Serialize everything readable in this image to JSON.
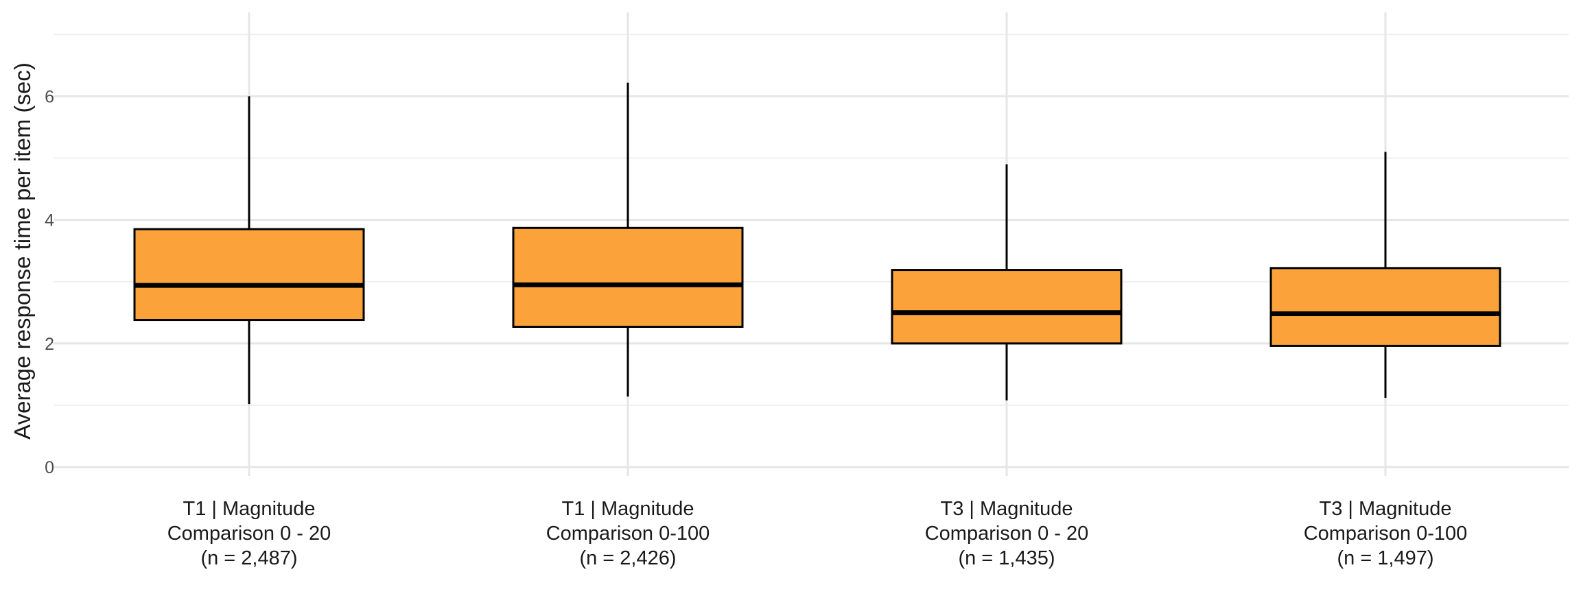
{
  "chart_data": {
    "type": "boxplot",
    "title": "",
    "xlabel": "",
    "ylabel": "Average response time per item (sec)",
    "ylim": [
      0,
      7.2
    ],
    "yticks": [
      0,
      2,
      4,
      6
    ],
    "grid": true,
    "colors": {
      "box_fill": "#FBA33A",
      "box_stroke": "#000000",
      "grid_major": "#e6e6e6",
      "grid_minor": "#efefef",
      "background": "#ffffff"
    },
    "series": [
      {
        "label_lines": [
          "T1 | Magnitude",
          "Comparison 0 - 20",
          "(n = 2,487)"
        ],
        "whisker_low": 1.02,
        "q1": 2.38,
        "median": 2.94,
        "q3": 3.85,
        "whisker_high": 6.0
      },
      {
        "label_lines": [
          "T1 | Magnitude",
          "Comparison 0-100",
          "(n = 2,426)"
        ],
        "whisker_low": 1.14,
        "q1": 2.27,
        "median": 2.95,
        "q3": 3.87,
        "whisker_high": 6.22
      },
      {
        "label_lines": [
          "T3 | Magnitude",
          "Comparison 0 - 20",
          "(n = 1,435)"
        ],
        "whisker_low": 1.08,
        "q1": 2.0,
        "median": 2.5,
        "q3": 3.19,
        "whisker_high": 4.9
      },
      {
        "label_lines": [
          "T3 | Magnitude",
          "Comparison 0-100",
          "(n = 1,497)"
        ],
        "whisker_low": 1.12,
        "q1": 1.96,
        "median": 2.48,
        "q3": 3.22,
        "whisker_high": 5.1
      }
    ]
  }
}
